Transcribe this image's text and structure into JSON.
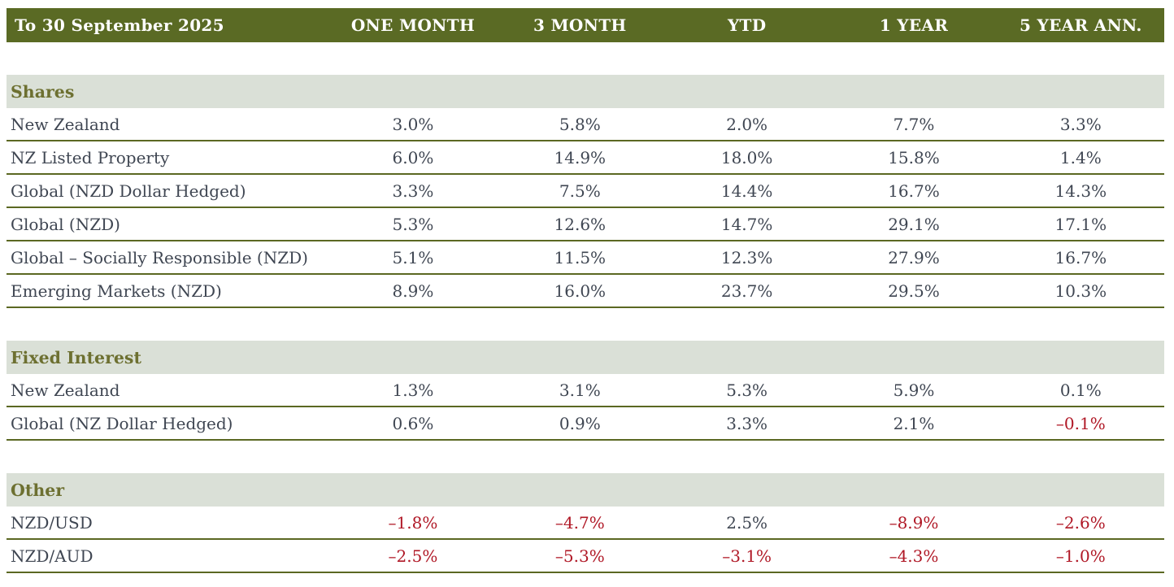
{
  "chart_data": {
    "type": "table",
    "title": "To 30 September 2025",
    "columns": [
      "ONE MONTH",
      "3 MONTH",
      "YTD",
      "1 YEAR",
      "5 YEAR ANN."
    ],
    "sections": [
      {
        "label": "Shares",
        "rows": [
          {
            "label": "New Zealand",
            "values": [
              "3.0%",
              "5.8%",
              "2.0%",
              "7.7%",
              "3.3%"
            ]
          },
          {
            "label": "NZ Listed Property",
            "values": [
              "6.0%",
              "14.9%",
              "18.0%",
              "15.8%",
              "1.4%"
            ]
          },
          {
            "label": "Global (NZD Dollar Hedged)",
            "values": [
              "3.3%",
              "7.5%",
              "14.4%",
              "16.7%",
              "14.3%"
            ]
          },
          {
            "label": "Global (NZD)",
            "values": [
              "5.3%",
              "12.6%",
              "14.7%",
              "29.1%",
              "17.1%"
            ]
          },
          {
            "label": "Global – Socially Responsible (NZD)",
            "values": [
              "5.1%",
              "11.5%",
              "12.3%",
              "27.9%",
              "16.7%"
            ]
          },
          {
            "label": "Emerging Markets (NZD)",
            "values": [
              "8.9%",
              "16.0%",
              "23.7%",
              "29.5%",
              "10.3%"
            ]
          }
        ]
      },
      {
        "label": "Fixed Interest",
        "rows": [
          {
            "label": "New Zealand",
            "values": [
              "1.3%",
              "3.1%",
              "5.3%",
              "5.9%",
              "0.1%"
            ]
          },
          {
            "label": "Global (NZ Dollar Hedged)",
            "values": [
              "0.6%",
              "0.9%",
              "3.3%",
              "2.1%",
              "–0.1%"
            ]
          }
        ]
      },
      {
        "label": "Other",
        "rows": [
          {
            "label": "NZD/USD",
            "values": [
              "–1.8%",
              "–4.7%",
              "2.5%",
              "–8.9%",
              "–2.6%"
            ]
          },
          {
            "label": "NZD/AUD",
            "values": [
              "–2.5%",
              "–5.3%",
              "–3.1%",
              "–4.3%",
              "–1.0%"
            ]
          }
        ]
      }
    ]
  },
  "colors": {
    "header_bg": "#5a6a24",
    "header_text": "#ffffff",
    "section_bg": "#dae0d7",
    "section_text": "#6d7031",
    "row_text": "#3f4652",
    "negative_text": "#b01826",
    "divider": "#5b6822",
    "page_bg": "#ffffff"
  }
}
